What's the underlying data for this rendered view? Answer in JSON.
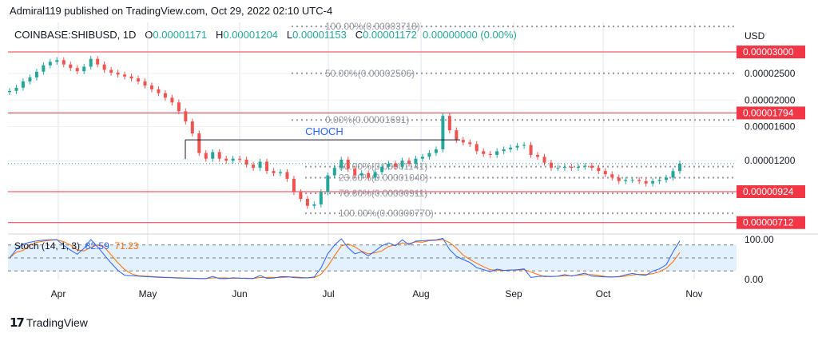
{
  "header": {
    "published": "Admiral119 published on TradingView.com, Oct 29, 2022 02:10 UTC-4"
  },
  "ohlc": {
    "symbol": "COINBASE:SHIBUSD, 1D",
    "o_label": "O",
    "o": "0.00001171",
    "h_label": "H",
    "h": "0.00001204",
    "l_label": "L",
    "l": "0.00001153",
    "c_label": "C",
    "c": "0.00001172",
    "change": "0.00000000 (0.00%)"
  },
  "currency": "USD",
  "stoch": {
    "name": "Stoch (14, 1, 3)",
    "k": "82.59",
    "d": "71.23"
  },
  "footer": {
    "brand": "TradingView"
  },
  "colors": {
    "up": "#26a69a",
    "down": "#ef5350",
    "level": "#f23645",
    "k": "#2962ff",
    "d": "#ff6d00"
  },
  "chart_data": {
    "type": "candlestick",
    "x_axis": {
      "ticks": [
        "Apr",
        "May",
        "Jun",
        "Jul",
        "Aug",
        "Sep",
        "Oct",
        "Nov"
      ]
    },
    "y_axis": {
      "scale": "log",
      "ticks": [
        "0.00002500",
        "0.00002000",
        "0.00001600",
        "0.00001200"
      ],
      "ylim": [
        6.6e-06,
        3.85e-05
      ]
    },
    "horizontal_levels": [
      "0.00003000",
      "0.00001794",
      "0.00000924",
      "0.00000712"
    ],
    "fib_levels": [
      {
        "label": "100.00%(0.00003718)",
        "price": 3.718e-05
      },
      {
        "label": "50.00%(0.00002506)",
        "price": 2.506e-05
      },
      {
        "label": "0.00%(0.00001691)",
        "price": 1.691e-05
      },
      {
        "label": "50.00%(0.00001141)",
        "price": 1.141e-05
      },
      {
        "label": "23.60%(0.00001040)",
        "price": 1.04e-05
      },
      {
        "label": "78.60%(0.00000911)",
        "price": 9.11e-06
      },
      {
        "label": "100.00%(0.00000770)",
        "price": 7.7e-06
      }
    ],
    "annotations": [
      {
        "text": "CHOCH",
        "price": 1.43e-05
      }
    ],
    "last_price": 1.172e-05,
    "series_close": [
      2.16e-05,
      2.22e-05,
      2.34e-05,
      2.42e-05,
      2.54e-05,
      2.68e-05,
      2.76e-05,
      2.8e-05,
      2.7e-05,
      2.62e-05,
      2.55e-05,
      2.65e-05,
      2.83e-05,
      2.7e-05,
      2.58e-05,
      2.52e-05,
      2.48e-05,
      2.44e-05,
      2.4e-05,
      2.34e-05,
      2.26e-05,
      2.19e-05,
      2.12e-05,
      2.04e-05,
      1.96e-05,
      1.82e-05,
      1.67e-05,
      1.51e-05,
      1.28e-05,
      1.22e-05,
      1.29e-05,
      1.22e-05,
      1.2e-05,
      1.22e-05,
      1.21e-05,
      1.16e-05,
      1.13e-05,
      1.19e-05,
      1.1e-05,
      1.08e-05,
      1.09e-05,
      1.03e-05,
      9.2e-06,
      8.7e-06,
      8.2e-06,
      8.3e-06,
      9.2e-06,
      1.06e-05,
      1.13e-05,
      1.21e-05,
      1.12e-05,
      1.06e-05,
      1.08e-05,
      1.04e-05,
      1.09e-05,
      1.14e-05,
      1.17e-05,
      1.14e-05,
      1.2e-05,
      1.17e-05,
      1.22e-05,
      1.24e-05,
      1.28e-05,
      1.32e-05,
      1.75e-05,
      1.55e-05,
      1.43e-05,
      1.4e-05,
      1.38e-05,
      1.3e-05,
      1.27e-05,
      1.26e-05,
      1.3e-05,
      1.32e-05,
      1.34e-05,
      1.36e-05,
      1.37e-05,
      1.26e-05,
      1.24e-05,
      1.18e-05,
      1.13e-05,
      1.13e-05,
      1.14e-05,
      1.13e-05,
      1.14e-05,
      1.15e-05,
      1.13e-05,
      1.1e-05,
      1.07e-05,
      1.04e-05,
      1.01e-05,
      1.02e-05,
      1.02e-05,
      1.01e-05,
      9.9e-06,
      1.01e-05,
      1.02e-05,
      1.04e-05,
      1.1e-05,
      1.17e-05
    ]
  }
}
